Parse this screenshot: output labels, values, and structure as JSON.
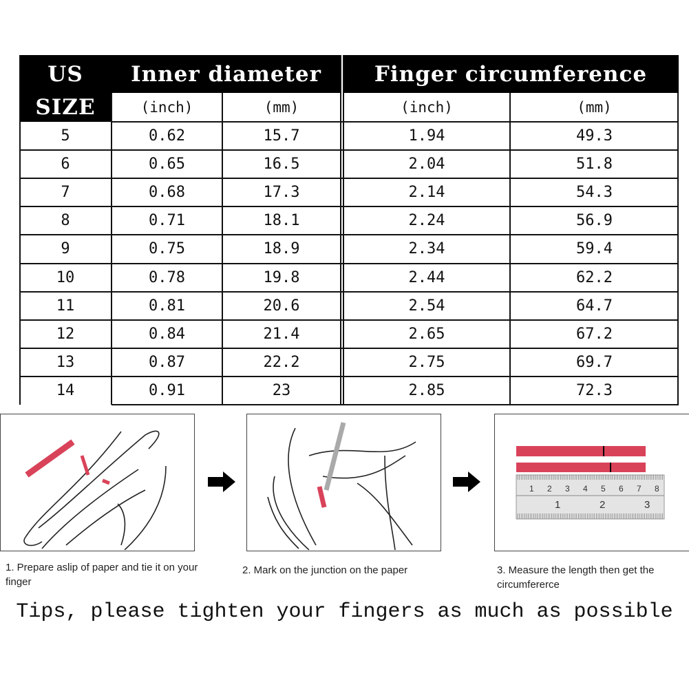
{
  "table": {
    "header": {
      "us": "US",
      "size": "SIZE",
      "inner_diameter": "Inner diameter",
      "finger_circumference": "Finger circumference"
    },
    "units": [
      "(inch)",
      "(mm)",
      "(inch)",
      "(mm)"
    ],
    "rows": [
      [
        "5",
        "0.62",
        "15.7",
        "1.94",
        "49.3"
      ],
      [
        "6",
        "0.65",
        "16.5",
        "2.04",
        "51.8"
      ],
      [
        "7",
        "0.68",
        "17.3",
        "2.14",
        "54.3"
      ],
      [
        "8",
        "0.71",
        "18.1",
        "2.24",
        "56.9"
      ],
      [
        "9",
        "0.75",
        "18.9",
        "2.34",
        "59.4"
      ],
      [
        "10",
        "0.78",
        "19.8",
        "2.44",
        "62.2"
      ],
      [
        "11",
        "0.81",
        "20.6",
        "2.54",
        "64.7"
      ],
      [
        "12",
        "0.84",
        "21.4",
        "2.65",
        "67.2"
      ],
      [
        "13",
        "0.87",
        "22.2",
        "2.75",
        "69.7"
      ],
      [
        "14",
        "0.91",
        "23",
        "2.85",
        "72.3"
      ]
    ]
  },
  "steps": [
    {
      "caption": "1. Prepare aslip of paper and tie it on your finger"
    },
    {
      "caption": "2. Mark on the junction on the paper"
    },
    {
      "caption": "3. Measure the length then get the circumfererce",
      "ruler_cm": [
        "1",
        "2",
        "3",
        "4",
        "5",
        "6",
        "7",
        "8"
      ],
      "ruler_in": [
        "1",
        "2",
        "3"
      ]
    }
  ],
  "tips": "Tips, please tighten your fingers as much as possible",
  "colors": {
    "header": "#000000",
    "paper_strip": "#d9435a"
  }
}
